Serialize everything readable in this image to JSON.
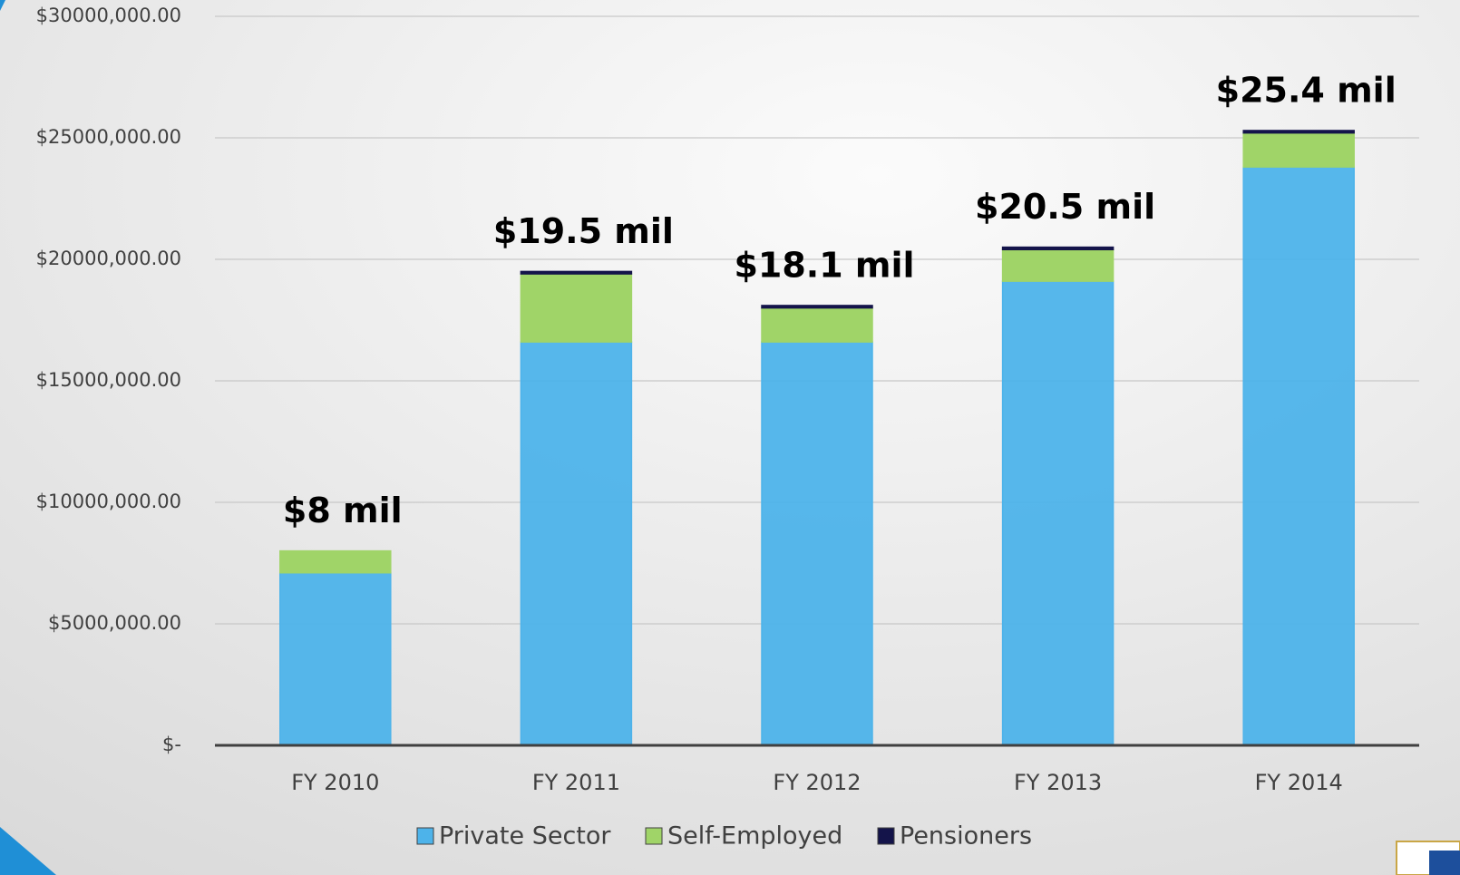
{
  "chart_data": {
    "type": "stacked_bar",
    "categories": [
      "FY 2010",
      "FY 2011",
      "FY 2012",
      "FY 2013",
      "FY 2014"
    ],
    "series": [
      {
        "name": "Private Sector",
        "color": "#4db3ea",
        "values": [
          7100000,
          16600000,
          16600000,
          19100000,
          23800000
        ]
      },
      {
        "name": "Self-Employed",
        "color": "#a0d468",
        "values": [
          900000,
          2800000,
          1400000,
          1300000,
          1400000
        ]
      },
      {
        "name": "Pensioners",
        "color": "#14144a",
        "values": [
          0,
          100000,
          100000,
          100000,
          100000
        ]
      }
    ],
    "annotations": [
      "$8  mil",
      "$19.5 mil",
      "$18.1 mil",
      "$20.5 mil",
      "$25.4 mil"
    ],
    "ylim": [
      0,
      30000000
    ],
    "yticks": [
      {
        "value": 0,
        "label": "$-"
      },
      {
        "value": 5000000,
        "label": "$5000,000.00"
      },
      {
        "value": 10000000,
        "label": "$10000,000.00"
      },
      {
        "value": 15000000,
        "label": "$15000,000.00"
      },
      {
        "value": 20000000,
        "label": "$20000,000.00"
      },
      {
        "value": 25000000,
        "label": "$25000,000.00"
      },
      {
        "value": 30000000,
        "label": "$30000,000.00"
      }
    ],
    "grid": true,
    "legend": "bottom"
  }
}
